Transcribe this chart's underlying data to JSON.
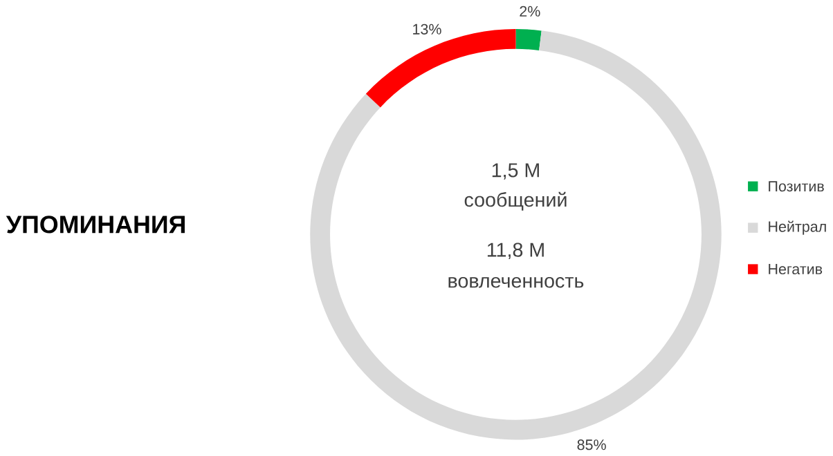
{
  "chart_data": {
    "type": "donut",
    "title": "УПОМИНАНИЯ",
    "categories": [
      "Позитив",
      "Нейтрал",
      "Негатив"
    ],
    "values": [
      2,
      85,
      13
    ],
    "colors": [
      "#00b050",
      "#d9d9d9",
      "#ff0000"
    ],
    "value_labels": [
      "2%",
      "85%",
      "13%"
    ],
    "annotations": [
      "1,5 M",
      "сообщений",
      "11,8 M",
      "вовлеченность"
    ],
    "legend": "right"
  }
}
